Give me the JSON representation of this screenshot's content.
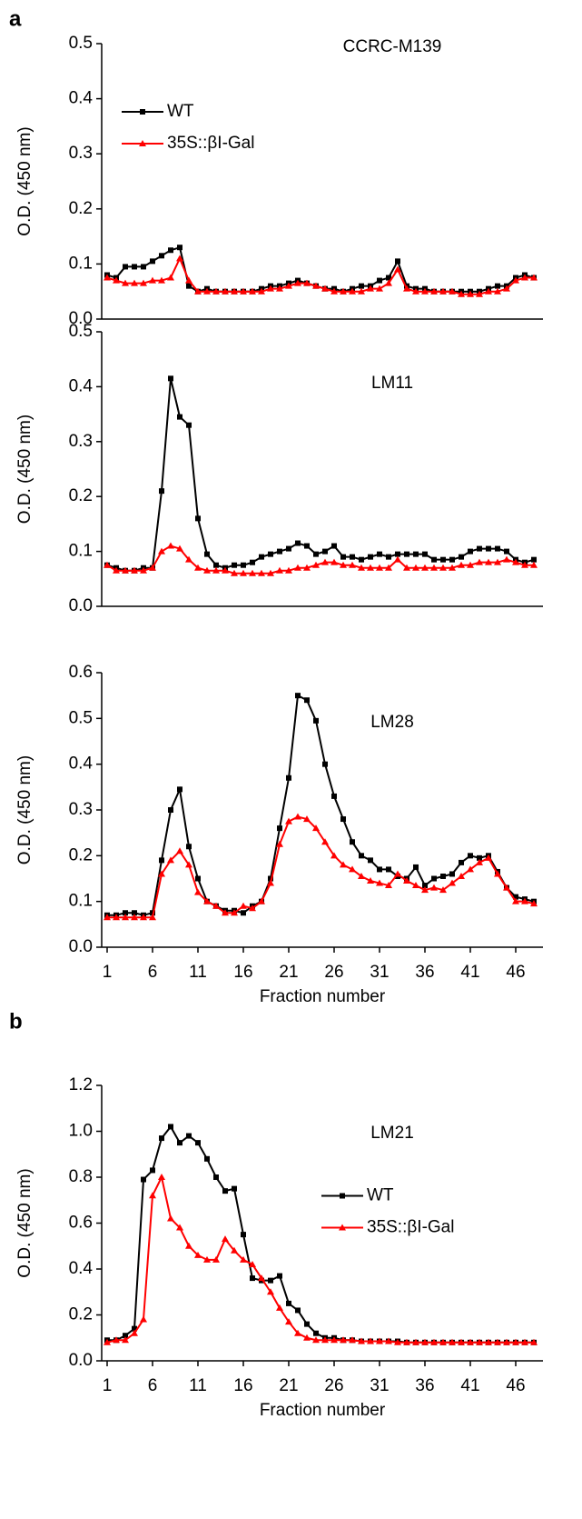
{
  "chart_data": [
    {
      "type": "line",
      "panel_label": "a",
      "title": "CCRC-M139",
      "ylabel": "O.D. (450 nm)",
      "x": [
        1,
        2,
        3,
        4,
        5,
        6,
        7,
        8,
        9,
        10,
        11,
        12,
        13,
        14,
        15,
        16,
        17,
        18,
        19,
        20,
        21,
        22,
        23,
        24,
        25,
        26,
        27,
        28,
        29,
        30,
        31,
        32,
        33,
        34,
        35,
        36,
        37,
        38,
        39,
        40,
        41,
        42,
        43,
        44,
        45,
        46,
        47,
        48
      ],
      "xlim": [
        0.4,
        49
      ],
      "ylim": [
        0,
        0.5
      ],
      "yticks": [
        {
          "value": 0,
          "label": "0.0"
        },
        0.1,
        0.2,
        0.3,
        0.4,
        0.5
      ],
      "legend": "upper left",
      "series": [
        {
          "name": "WT",
          "color": "#000000",
          "marker": "square",
          "values": [
            0.08,
            0.075,
            0.095,
            0.095,
            0.095,
            0.105,
            0.115,
            0.125,
            0.13,
            0.06,
            0.05,
            0.055,
            0.05,
            0.05,
            0.05,
            0.05,
            0.05,
            0.055,
            0.06,
            0.06,
            0.065,
            0.07,
            0.065,
            0.06,
            0.055,
            0.055,
            0.05,
            0.055,
            0.06,
            0.06,
            0.07,
            0.075,
            0.105,
            0.06,
            0.055,
            0.055,
            0.05,
            0.05,
            0.05,
            0.05,
            0.05,
            0.05,
            0.055,
            0.06,
            0.06,
            0.075,
            0.08,
            0.075
          ]
        },
        {
          "name": "35S::βI-Gal",
          "color": "#ff0000",
          "marker": "triangle",
          "values": [
            0.075,
            0.07,
            0.065,
            0.065,
            0.065,
            0.07,
            0.07,
            0.075,
            0.11,
            0.07,
            0.05,
            0.05,
            0.05,
            0.05,
            0.05,
            0.05,
            0.05,
            0.05,
            0.055,
            0.055,
            0.06,
            0.065,
            0.065,
            0.06,
            0.055,
            0.05,
            0.05,
            0.05,
            0.05,
            0.055,
            0.055,
            0.065,
            0.09,
            0.055,
            0.05,
            0.05,
            0.05,
            0.05,
            0.05,
            0.045,
            0.045,
            0.045,
            0.05,
            0.05,
            0.055,
            0.07,
            0.075,
            0.075
          ]
        }
      ]
    },
    {
      "type": "line",
      "title": "LM11",
      "ylabel": "O.D. (450 nm)",
      "x": [
        1,
        2,
        3,
        4,
        5,
        6,
        7,
        8,
        9,
        10,
        11,
        12,
        13,
        14,
        15,
        16,
        17,
        18,
        19,
        20,
        21,
        22,
        23,
        24,
        25,
        26,
        27,
        28,
        29,
        30,
        31,
        32,
        33,
        34,
        35,
        36,
        37,
        38,
        39,
        40,
        41,
        42,
        43,
        44,
        45,
        46,
        47,
        48
      ],
      "xlim": [
        0.4,
        49
      ],
      "ylim": [
        0,
        0.5
      ],
      "yticks": [
        {
          "value": 0,
          "label": "0.0"
        },
        0.1,
        0.2,
        0.3,
        0.4,
        0.5
      ],
      "series": [
        {
          "color": "#000000",
          "marker": "square",
          "values": [
            0.075,
            0.07,
            0.065,
            0.065,
            0.07,
            0.07,
            0.21,
            0.415,
            0.345,
            0.33,
            0.16,
            0.095,
            0.075,
            0.07,
            0.075,
            0.075,
            0.08,
            0.09,
            0.095,
            0.1,
            0.105,
            0.115,
            0.11,
            0.095,
            0.1,
            0.11,
            0.09,
            0.09,
            0.085,
            0.09,
            0.095,
            0.09,
            0.095,
            0.095,
            0.095,
            0.095,
            0.085,
            0.085,
            0.085,
            0.09,
            0.1,
            0.105,
            0.105,
            0.105,
            0.1,
            0.085,
            0.08,
            0.085
          ]
        },
        {
          "color": "#ff0000",
          "marker": "triangle",
          "values": [
            0.075,
            0.065,
            0.065,
            0.065,
            0.065,
            0.07,
            0.1,
            0.11,
            0.105,
            0.085,
            0.07,
            0.065,
            0.065,
            0.065,
            0.06,
            0.06,
            0.06,
            0.06,
            0.06,
            0.065,
            0.065,
            0.07,
            0.07,
            0.075,
            0.08,
            0.08,
            0.075,
            0.075,
            0.07,
            0.07,
            0.07,
            0.07,
            0.085,
            0.07,
            0.07,
            0.07,
            0.07,
            0.07,
            0.07,
            0.075,
            0.075,
            0.08,
            0.08,
            0.08,
            0.085,
            0.08,
            0.075,
            0.075
          ]
        }
      ]
    },
    {
      "type": "line",
      "title": "LM28",
      "ylabel": "O.D. (450 nm)",
      "xlabel": "Fraction number",
      "x": [
        1,
        2,
        3,
        4,
        5,
        6,
        7,
        8,
        9,
        10,
        11,
        12,
        13,
        14,
        15,
        16,
        17,
        18,
        19,
        20,
        21,
        22,
        23,
        24,
        25,
        26,
        27,
        28,
        29,
        30,
        31,
        32,
        33,
        34,
        35,
        36,
        37,
        38,
        39,
        40,
        41,
        42,
        43,
        44,
        45,
        46,
        47,
        48
      ],
      "xlim": [
        0.4,
        49
      ],
      "ylim": [
        0,
        0.6
      ],
      "xticks": [
        1,
        6,
        11,
        16,
        21,
        26,
        31,
        36,
        41,
        46
      ],
      "yticks": [
        {
          "value": 0,
          "label": "0.0"
        },
        0.1,
        0.2,
        0.3,
        0.4,
        0.5,
        0.6
      ],
      "series": [
        {
          "color": "#000000",
          "marker": "square",
          "values": [
            0.07,
            0.07,
            0.075,
            0.075,
            0.07,
            0.075,
            0.19,
            0.3,
            0.345,
            0.22,
            0.15,
            0.1,
            0.09,
            0.08,
            0.08,
            0.075,
            0.09,
            0.1,
            0.15,
            0.26,
            0.37,
            0.55,
            0.54,
            0.495,
            0.4,
            0.33,
            0.28,
            0.23,
            0.2,
            0.19,
            0.17,
            0.17,
            0.155,
            0.15,
            0.175,
            0.135,
            0.15,
            0.155,
            0.16,
            0.185,
            0.2,
            0.195,
            0.2,
            0.165,
            0.13,
            0.11,
            0.105,
            0.1
          ]
        },
        {
          "color": "#ff0000",
          "marker": "triangle",
          "values": [
            0.065,
            0.065,
            0.065,
            0.065,
            0.065,
            0.065,
            0.16,
            0.19,
            0.21,
            0.18,
            0.12,
            0.1,
            0.09,
            0.075,
            0.075,
            0.09,
            0.085,
            0.1,
            0.14,
            0.225,
            0.275,
            0.285,
            0.28,
            0.26,
            0.23,
            0.2,
            0.18,
            0.17,
            0.155,
            0.145,
            0.14,
            0.135,
            0.16,
            0.145,
            0.135,
            0.125,
            0.13,
            0.125,
            0.14,
            0.155,
            0.17,
            0.185,
            0.195,
            0.16,
            0.13,
            0.1,
            0.1,
            0.095
          ]
        }
      ]
    },
    {
      "type": "line",
      "panel_label": "b",
      "title": "LM21",
      "ylabel": "O.D. (450 nm)",
      "xlabel": "Fraction number",
      "x": [
        1,
        2,
        3,
        4,
        5,
        6,
        7,
        8,
        9,
        10,
        11,
        12,
        13,
        14,
        15,
        16,
        17,
        18,
        19,
        20,
        21,
        22,
        23,
        24,
        25,
        26,
        27,
        28,
        29,
        30,
        31,
        32,
        33,
        34,
        35,
        36,
        37,
        38,
        39,
        40,
        41,
        42,
        43,
        44,
        45,
        46,
        47,
        48
      ],
      "xlim": [
        0.4,
        49
      ],
      "ylim": [
        0,
        1.2
      ],
      "xticks": [
        1,
        6,
        11,
        16,
        21,
        26,
        31,
        36,
        41,
        46
      ],
      "yticks": [
        {
          "value": 0,
          "label": "0.0"
        },
        0.2,
        0.4,
        0.6,
        0.8,
        {
          "value": 1,
          "label": "1.0"
        },
        1.2
      ],
      "legend": "center right",
      "series": [
        {
          "name": "WT",
          "color": "#000000",
          "marker": "square",
          "values": [
            0.09,
            0.09,
            0.11,
            0.14,
            0.79,
            0.83,
            0.97,
            1.02,
            0.95,
            0.98,
            0.95,
            0.88,
            0.8,
            0.74,
            0.75,
            0.55,
            0.36,
            0.35,
            0.35,
            0.37,
            0.25,
            0.22,
            0.16,
            0.12,
            0.1,
            0.1,
            0.09,
            0.09,
            0.085,
            0.085,
            0.085,
            0.085,
            0.085,
            0.08,
            0.08,
            0.08,
            0.08,
            0.08,
            0.08,
            0.08,
            0.08,
            0.08,
            0.08,
            0.08,
            0.08,
            0.08,
            0.08,
            0.08
          ]
        },
        {
          "name": "35S::βI-Gal",
          "color": "#ff0000",
          "marker": "triangle",
          "values": [
            0.08,
            0.09,
            0.09,
            0.12,
            0.18,
            0.72,
            0.8,
            0.62,
            0.58,
            0.5,
            0.46,
            0.44,
            0.44,
            0.53,
            0.48,
            0.44,
            0.42,
            0.36,
            0.3,
            0.23,
            0.17,
            0.12,
            0.1,
            0.09,
            0.09,
            0.09,
            0.09,
            0.09,
            0.085,
            0.085,
            0.085,
            0.085,
            0.08,
            0.08,
            0.08,
            0.08,
            0.08,
            0.08,
            0.08,
            0.08,
            0.08,
            0.08,
            0.08,
            0.08,
            0.08,
            0.08,
            0.08,
            0.08
          ]
        }
      ]
    }
  ]
}
